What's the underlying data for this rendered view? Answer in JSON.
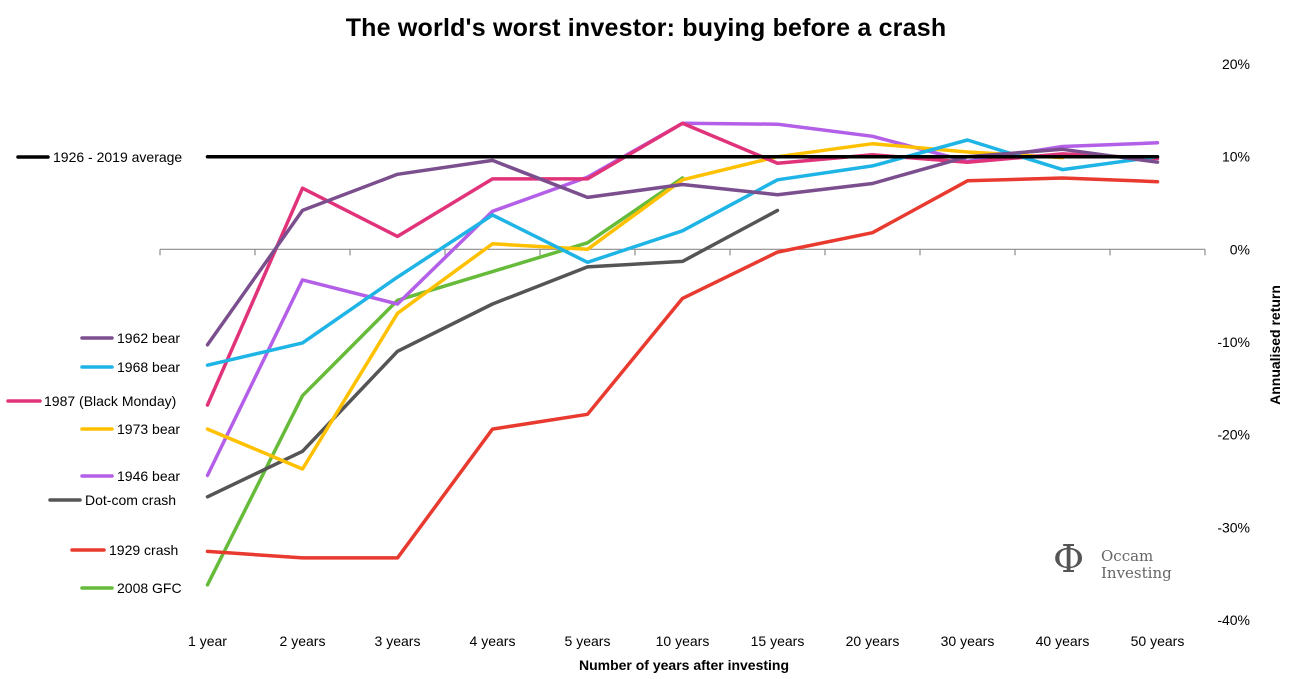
{
  "chart_data": {
    "type": "line",
    "title": "The world's worst investor: buying before a crash",
    "xlabel": "Number of years after investing",
    "ylabel": "Annualised return",
    "categories": [
      "1 year",
      "2 years",
      "3 years",
      "4 years",
      "5 years",
      "10 years",
      "15 years",
      "20 years",
      "30 years",
      "40 years",
      "50 years"
    ],
    "ylim": [
      -40,
      20
    ],
    "yticks": [
      20,
      10,
      0,
      -10,
      -20,
      -30,
      -40
    ],
    "ytick_labels": [
      "20%",
      "10%",
      "0%",
      "-10%",
      "-20%",
      "-30%",
      "-40%"
    ],
    "legend_position": "left",
    "series": [
      {
        "name": "1926 - 2019 average",
        "color": "#000000",
        "values": [
          10,
          10,
          10,
          10,
          10,
          10,
          10,
          10,
          10,
          10,
          10
        ]
      },
      {
        "name": "1962 bear",
        "color": "#7b4f8e",
        "values": [
          -10.3,
          4.2,
          8.1,
          9.6,
          5.6,
          7.0,
          5.9,
          7.1,
          10.0,
          10.8,
          9.4
        ]
      },
      {
        "name": "1968 bear",
        "color": "#1fb4e6",
        "values": [
          -12.5,
          -10.1,
          -3.0,
          3.7,
          -1.4,
          2.0,
          7.5,
          9.0,
          11.8,
          8.6,
          10.0
        ]
      },
      {
        "name": "1987 (Black Monday)",
        "color": "#e0337a",
        "values": [
          -16.8,
          6.6,
          1.4,
          7.6,
          7.6,
          13.6,
          9.3,
          10.2,
          9.4,
          10.3,
          9.8
        ]
      },
      {
        "name": "1973 bear",
        "color": "#ffc000",
        "values": [
          -19.4,
          -23.7,
          -6.9,
          0.6,
          0.0,
          7.5,
          10.0,
          11.4,
          10.5,
          9.9,
          null
        ]
      },
      {
        "name": "1946 bear",
        "color": "#b35fe8",
        "values": [
          -24.4,
          -3.3,
          -5.9,
          4.1,
          7.8,
          13.6,
          13.5,
          12.2,
          9.5,
          11.1,
          11.5
        ]
      },
      {
        "name": "Dot-com crash",
        "color": "#555555",
        "values": [
          -26.7,
          -21.8,
          -11.0,
          -5.9,
          -1.9,
          -1.3,
          4.2,
          null,
          null,
          null,
          null
        ]
      },
      {
        "name": "1929 crash",
        "color": "#e83a2f",
        "values": [
          -32.6,
          -33.3,
          -33.3,
          -19.4,
          -17.8,
          -5.3,
          -0.3,
          1.8,
          7.4,
          7.7,
          7.3
        ]
      },
      {
        "name": "2008 GFC",
        "color": "#66bb3a",
        "values": [
          -36.2,
          -15.8,
          -5.5,
          -2.4,
          0.7,
          7.7,
          null,
          null,
          null,
          null,
          null
        ]
      }
    ]
  },
  "logo": {
    "symbol": "Φ",
    "line1": "Occam",
    "line2": "Investing"
  }
}
